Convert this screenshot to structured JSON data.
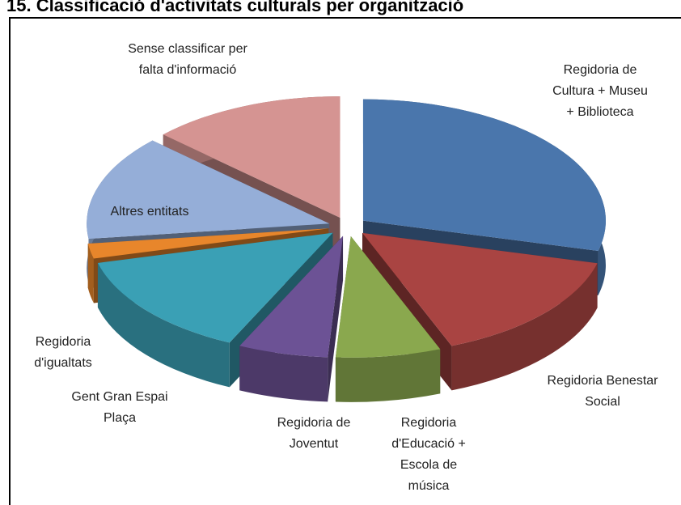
{
  "chart_data": {
    "type": "pie3d",
    "title": "15. Classificació d'activitats culturals per organització",
    "categories": [
      "Regidoria de Cultura + Museu + Biblioteca",
      "Regidoria Benestar Social",
      "Regidoria d'Educació + Escola de música",
      "Regidoria de Joventut",
      "Gent Gran Espai Plaça",
      "Regidoria d'igualtats",
      "Altres entitats",
      "Sense classificar per falta d'informació"
    ],
    "values": [
      29,
      15,
      7,
      6,
      14,
      2,
      14,
      13
    ],
    "colors": [
      "#4a76ac",
      "#a94442",
      "#8aa84e",
      "#6c5295",
      "#3aa0b5",
      "#e8862b",
      "#95aed8",
      "#d59492"
    ]
  }
}
